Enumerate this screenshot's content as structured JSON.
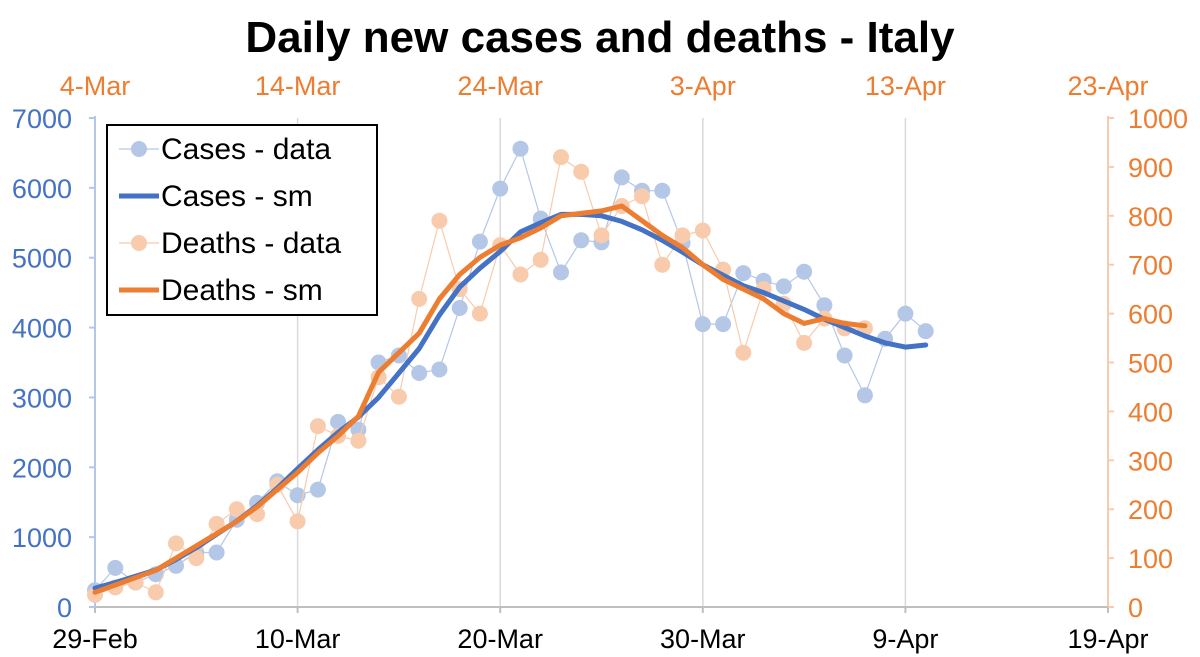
{
  "colors": {
    "cases_data": "#b4c7e7",
    "cases_sm": "#4472c4",
    "deaths_data": "#f8cbad",
    "deaths_sm": "#ed7d31",
    "left_axis_text": "#4472c4",
    "right_axis_text": "#ed7d31",
    "top_axis_text": "#ed7d31"
  },
  "chart_data": {
    "type": "line",
    "title": "Daily new cases and deaths - Italy",
    "grid": "vertical",
    "legend_position": "top-left",
    "x_bottom": {
      "ticks": [
        "29-Feb",
        "10-Mar",
        "20-Mar",
        "30-Mar",
        "9-Apr",
        "19-Apr"
      ],
      "range_days": [
        0,
        50
      ]
    },
    "x_top": {
      "ticks": [
        "4-Mar",
        "14-Mar",
        "24-Mar",
        "3-Apr",
        "13-Apr",
        "23-Apr"
      ],
      "range_days": [
        0,
        50
      ]
    },
    "y_left": {
      "ticks": [
        "0",
        "1000",
        "2000",
        "3000",
        "4000",
        "5000",
        "6000",
        "7000"
      ],
      "range": [
        0,
        7000
      ]
    },
    "y_right": {
      "ticks": [
        "0",
        "100",
        "200",
        "300",
        "400",
        "500",
        "600",
        "700",
        "800",
        "900",
        "1000"
      ],
      "range": [
        0,
        1000
      ]
    },
    "legend": [
      "Cases - data",
      "Cases - sm",
      "Deaths - data",
      "Deaths - sm"
    ],
    "series": [
      {
        "name": "Cases - data",
        "axis": "left",
        "style": "points",
        "x": [
          "29-Feb",
          "1-Mar",
          "2-Mar",
          "3-Mar",
          "4-Mar",
          "5-Mar",
          "6-Mar",
          "7-Mar",
          "8-Mar",
          "9-Mar",
          "10-Mar",
          "11-Mar",
          "12-Mar",
          "13-Mar",
          "14-Mar",
          "15-Mar",
          "16-Mar",
          "17-Mar",
          "18-Mar",
          "19-Mar",
          "20-Mar",
          "21-Mar",
          "22-Mar",
          "23-Mar",
          "24-Mar",
          "25-Mar",
          "26-Mar",
          "27-Mar",
          "28-Mar",
          "29-Mar",
          "30-Mar",
          "31-Mar",
          "1-Apr",
          "2-Apr",
          "3-Apr",
          "4-Apr",
          "5-Apr",
          "6-Apr",
          "7-Apr",
          "8-Apr",
          "9-Apr",
          "10-Apr"
        ],
        "values": [
          240,
          560,
          350,
          470,
          590,
          780,
          780,
          1250,
          1490,
          1800,
          1600,
          1680,
          2650,
          2540,
          3500,
          3600,
          3350,
          3400,
          4280,
          5230,
          5990,
          6560,
          5560,
          4790,
          5250,
          5220,
          6150,
          5960,
          5960,
          5210,
          4050,
          4050,
          4780,
          4670,
          4590,
          4800,
          4320,
          3600,
          3030,
          3840,
          4200,
          3950
        ]
      },
      {
        "name": "Cases - sm",
        "axis": "left",
        "style": "line",
        "x": [
          "29-Feb",
          "1-Mar",
          "2-Mar",
          "3-Mar",
          "4-Mar",
          "5-Mar",
          "6-Mar",
          "7-Mar",
          "8-Mar",
          "9-Mar",
          "10-Mar",
          "11-Mar",
          "12-Mar",
          "13-Mar",
          "14-Mar",
          "15-Mar",
          "16-Mar",
          "17-Mar",
          "18-Mar",
          "19-Mar",
          "20-Mar",
          "21-Mar",
          "22-Mar",
          "23-Mar",
          "24-Mar",
          "25-Mar",
          "26-Mar",
          "27-Mar",
          "28-Mar",
          "29-Mar",
          "30-Mar",
          "31-Mar",
          "1-Apr",
          "2-Apr",
          "3-Apr",
          "4-Apr",
          "5-Apr",
          "6-Apr",
          "7-Apr",
          "8-Apr",
          "9-Apr",
          "10-Apr"
        ],
        "values": [
          270,
          350,
          440,
          530,
          680,
          850,
          1040,
          1230,
          1450,
          1700,
          1980,
          2250,
          2500,
          2720,
          3000,
          3350,
          3700,
          4180,
          4580,
          4850,
          5090,
          5370,
          5500,
          5620,
          5620,
          5600,
          5520,
          5400,
          5250,
          5080,
          4900,
          4750,
          4600,
          4500,
          4380,
          4260,
          4120,
          4000,
          3880,
          3780,
          3720,
          3750
        ]
      },
      {
        "name": "Deaths - data",
        "axis": "right",
        "style": "points",
        "x": [
          "29-Feb",
          "1-Mar",
          "2-Mar",
          "3-Mar",
          "4-Mar",
          "5-Mar",
          "6-Mar",
          "7-Mar",
          "8-Mar",
          "9-Mar",
          "10-Mar",
          "11-Mar",
          "12-Mar",
          "13-Mar",
          "14-Mar",
          "15-Mar",
          "16-Mar",
          "17-Mar",
          "18-Mar",
          "19-Mar",
          "20-Mar",
          "21-Mar",
          "22-Mar",
          "23-Mar",
          "24-Mar",
          "25-Mar",
          "26-Mar",
          "27-Mar",
          "28-Mar",
          "29-Mar",
          "30-Mar",
          "31-Mar",
          "1-Apr",
          "2-Apr",
          "3-Apr",
          "4-Apr",
          "5-Apr",
          "6-Apr",
          "7-Apr"
        ],
        "values": [
          25,
          40,
          50,
          30,
          130,
          100,
          170,
          200,
          190,
          250,
          175,
          370,
          350,
          340,
          470,
          430,
          630,
          790,
          650,
          600,
          740,
          680,
          710,
          920,
          890,
          760,
          820,
          840,
          700,
          760,
          770,
          690,
          520,
          650,
          620,
          540,
          590,
          570,
          570
        ]
      },
      {
        "name": "Deaths - sm",
        "axis": "right",
        "style": "line",
        "x": [
          "29-Feb",
          "1-Mar",
          "2-Mar",
          "3-Mar",
          "4-Mar",
          "5-Mar",
          "6-Mar",
          "7-Mar",
          "8-Mar",
          "9-Mar",
          "10-Mar",
          "11-Mar",
          "12-Mar",
          "13-Mar",
          "14-Mar",
          "15-Mar",
          "16-Mar",
          "17-Mar",
          "18-Mar",
          "19-Mar",
          "20-Mar",
          "21-Mar",
          "22-Mar",
          "23-Mar",
          "24-Mar",
          "25-Mar",
          "26-Mar",
          "27-Mar",
          "28-Mar",
          "29-Mar",
          "30-Mar",
          "31-Mar",
          "1-Apr",
          "2-Apr",
          "3-Apr",
          "4-Apr",
          "5-Apr",
          "6-Apr",
          "7-Apr"
        ],
        "values": [
          30,
          45,
          60,
          75,
          100,
          125,
          150,
          175,
          205,
          240,
          275,
          315,
          350,
          390,
          480,
          520,
          560,
          630,
          680,
          715,
          740,
          755,
          775,
          800,
          805,
          810,
          820,
          790,
          760,
          735,
          700,
          670,
          650,
          630,
          600,
          580,
          590,
          580,
          575
        ]
      }
    ]
  }
}
